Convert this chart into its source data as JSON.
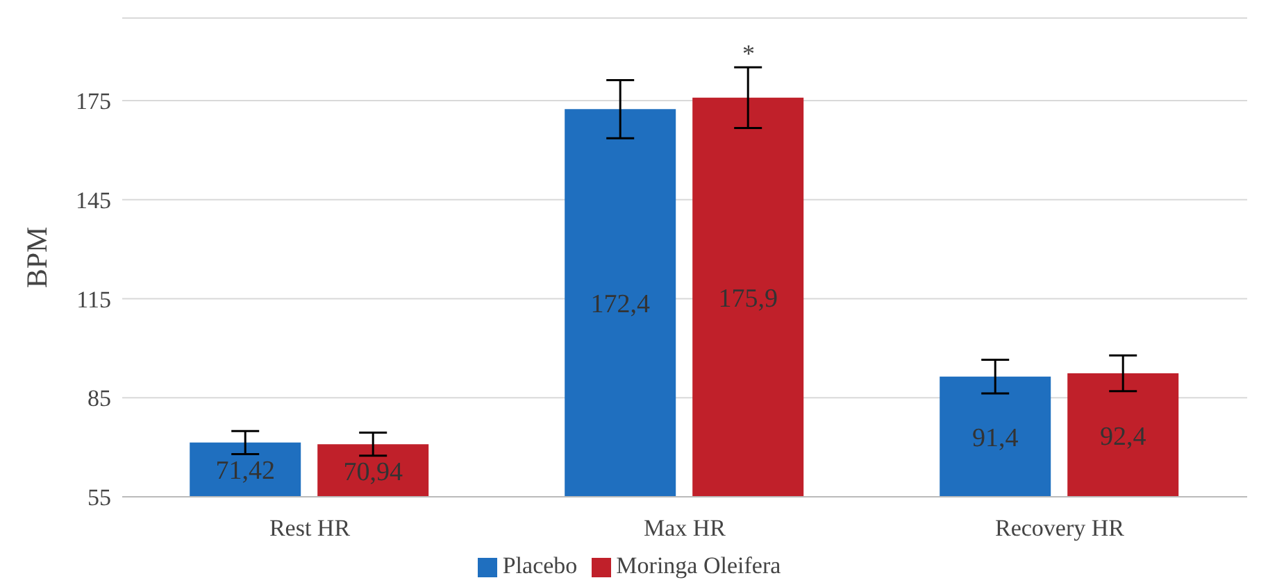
{
  "chart_data": {
    "type": "bar",
    "ylabel": "BPM",
    "categories": [
      "Rest HR",
      "Max HR",
      "Recovery HR"
    ],
    "series": [
      {
        "name": "Placebo",
        "color": "#1f6fbf",
        "values": [
          71.42,
          172.4,
          91.4
        ],
        "errors": [
          3.5,
          8.8,
          5.1
        ],
        "value_labels": [
          "71,42",
          "172,4",
          "91,4"
        ]
      },
      {
        "name": "Moringa Oleifera",
        "color": "#c0202a",
        "values": [
          70.94,
          175.9,
          92.4
        ],
        "errors": [
          3.5,
          9.2,
          5.4
        ],
        "value_labels": [
          "70,94",
          "175,9",
          "92,4"
        ]
      }
    ],
    "ylim": [
      55,
      200
    ],
    "yticks": [
      55,
      85,
      115,
      145,
      175
    ],
    "grid": "y",
    "legend": "bottom",
    "annotations": [
      "*"
    ]
  }
}
